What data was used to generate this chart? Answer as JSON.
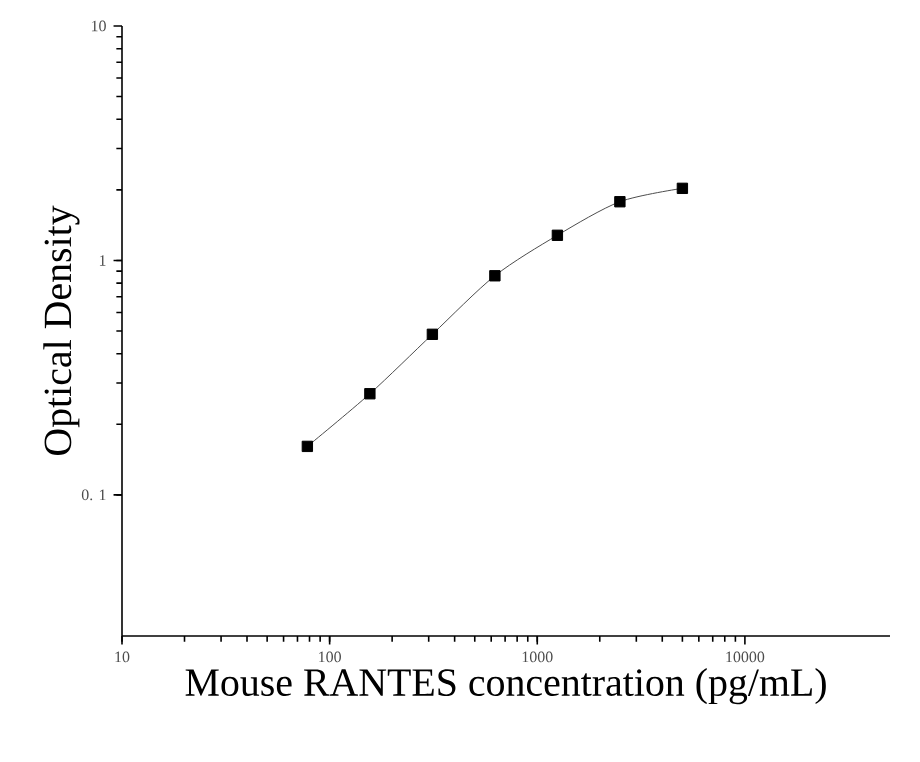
{
  "chart_data": {
    "type": "line",
    "xlabel": "Mouse RANTES concentration (pg/mL)",
    "ylabel": "Optical Density",
    "x": [
      78.125,
      156.25,
      312.5,
      625,
      1250,
      2500,
      5000
    ],
    "series": [
      {
        "color": "#000000",
        "values": [
          0.161,
          0.27,
          0.484,
          0.86,
          1.28,
          1.78,
          2.03
        ]
      }
    ],
    "log": "xy",
    "marker": "square",
    "xlim": [
      10,
      50000
    ],
    "ylim": [
      0.025,
      10
    ],
    "xticks": [
      10,
      100,
      1000,
      10000
    ],
    "yticks": [
      {
        "value": 0.1,
        "label": "0. 1"
      },
      1,
      10
    ]
  }
}
